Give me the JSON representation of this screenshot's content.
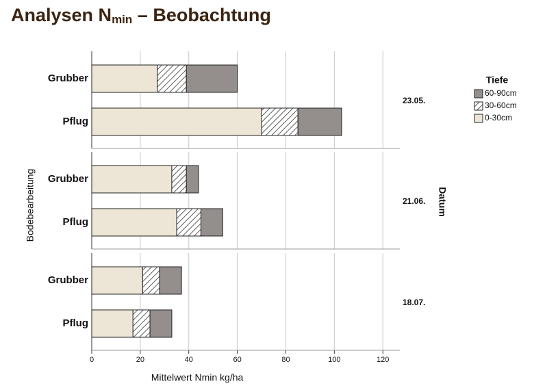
{
  "chart_data": {
    "type": "bar",
    "orientation": "horizontal",
    "stacked": true,
    "title": {
      "main": "Analysen N",
      "subscript": "min",
      "rest": " – Beobachtung"
    },
    "x_label": "Mittelwert Nmin kg/ha",
    "y_label": "Bodebearbeitung",
    "panel_label": "Datum",
    "legend_title": "Tiefe",
    "panels": [
      "23.05.",
      "21.06.",
      "18.07."
    ],
    "categories": [
      "Grubber",
      "Pflug"
    ],
    "series": [
      {
        "name": "0-30cm",
        "color": "#ede6d6",
        "values": [
          [
            27,
            70
          ],
          [
            33,
            35
          ],
          [
            21,
            17
          ]
        ]
      },
      {
        "name": "30-60cm",
        "color": "#ffffff",
        "pattern": "hatch",
        "values": [
          [
            12,
            15
          ],
          [
            6,
            10
          ],
          [
            7,
            7
          ]
        ]
      },
      {
        "name": "60-90cm",
        "color": "#948e8c",
        "values": [
          [
            21,
            18
          ],
          [
            5,
            9
          ],
          [
            9,
            9
          ]
        ]
      }
    ],
    "xlim": [
      0,
      127
    ],
    "xticks": [
      0,
      20,
      40,
      60,
      80,
      100,
      120
    ],
    "grid": true
  }
}
